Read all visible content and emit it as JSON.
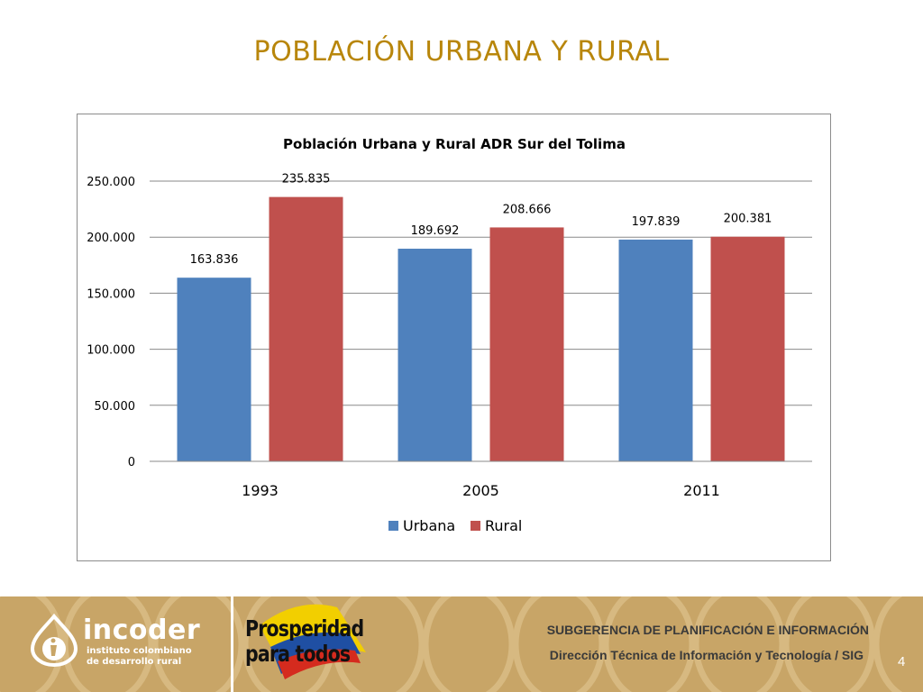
{
  "slide": {
    "title": "POBLACIÓN URBANA Y RURAL",
    "page_number": "4"
  },
  "footer": {
    "incoder_name": "incoder",
    "incoder_sub_line1": "instituto colombiano",
    "incoder_sub_line2": "de desarrollo rural",
    "prosperidad_line1": "Prosperidad",
    "prosperidad_line2": "para todos",
    "line1": "SUBGERENCIA DE PLANIFICACIÓN E INFORMACIÓN",
    "line2": "Dirección Técnica de Información y Tecnología / SIG"
  },
  "chart_data": {
    "type": "bar",
    "title": "Población Urbana y Rural ADR Sur del Tolima",
    "categories": [
      "1993",
      "2005",
      "2011"
    ],
    "series": [
      {
        "name": "Urbana",
        "values": [
          163836,
          189692,
          197839
        ],
        "labels": [
          "163.836",
          "189.692",
          "197.839"
        ],
        "color": "#4f81bd"
      },
      {
        "name": "Rural",
        "values": [
          235835,
          208666,
          200381
        ],
        "labels": [
          "235.835",
          "208.666",
          "200.381"
        ],
        "color": "#c0504d"
      }
    ],
    "ylim": [
      0,
      250000
    ],
    "yticks": [
      0,
      50000,
      100000,
      150000,
      200000,
      250000
    ],
    "ytick_labels": [
      "0",
      "50.000",
      "100.000",
      "150.000",
      "200.000",
      "250.000"
    ],
    "grid": true,
    "legend_position": "bottom"
  }
}
